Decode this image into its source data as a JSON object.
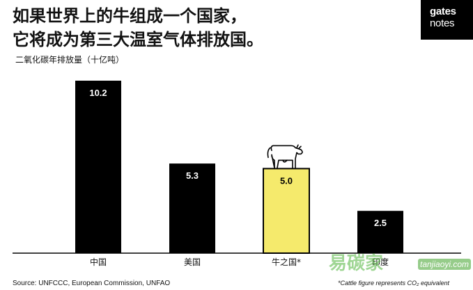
{
  "header": {
    "title_line1": "如果世界上的牛组成一个国家，",
    "title_line2": "它将成为第三大温室气体排放国。",
    "unit_label": "二氧化碳年排放量（十亿吨）"
  },
  "logo": {
    "line1": "gates",
    "line2": "notes"
  },
  "footer": {
    "source": "Source: UNFCCC, European Commission, UNFAO",
    "footnote": "*Cattle figure represents CO₂ equivalent"
  },
  "watermark": {
    "text": "易碳家",
    "url": "tanjiaoyi.com"
  },
  "colors": {
    "bar_default": "#000000",
    "bar_highlight": "#f5ea6c",
    "bar_label": "#ffffff"
  },
  "chart_data": {
    "type": "bar",
    "title": "如果世界上的牛组成一个国家，它将成为第三大温室气体排放国。",
    "ylabel": "二氧化碳年排放量（十亿吨）",
    "categories": [
      "中国",
      "美国",
      "牛之国*",
      "印度"
    ],
    "values": [
      10.2,
      5.3,
      5.0,
      2.5
    ],
    "data_labels": [
      "10.2",
      "5.3",
      "5.0",
      "2.5"
    ],
    "highlight_index": 2,
    "highlight_icon": "cow-icon",
    "ylim": [
      0,
      10.2
    ],
    "grid": false,
    "legend": "none"
  }
}
